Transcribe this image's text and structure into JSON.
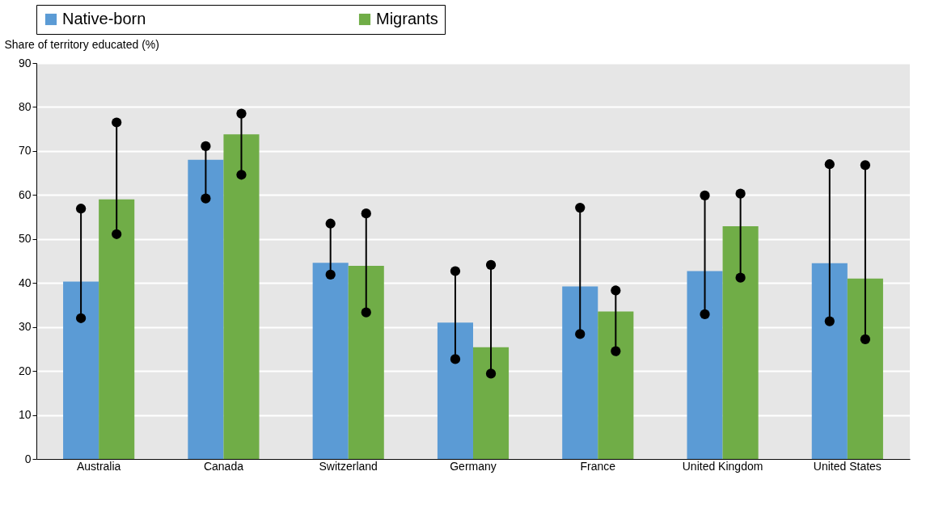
{
  "chart_data": {
    "type": "bar",
    "ylabel": "Share of territory educated (%)",
    "categories": [
      "Australia",
      "Canada",
      "Switzerland",
      "Germany",
      "France",
      "United Kingdom",
      "United States"
    ],
    "series": [
      {
        "name": "Native-born",
        "color": "#5b9bd5",
        "values": [
          40.3,
          68.0,
          44.6,
          31.0,
          39.2,
          42.7,
          44.5
        ]
      },
      {
        "name": "Migrants",
        "color": "#70ad47",
        "values": [
          59.0,
          73.8,
          43.9,
          25.4,
          33.5,
          52.9,
          41.0
        ]
      },
      {
        "type": "scatter",
        "color": "#000000",
        "values": [
          32.0,
          59.2,
          41.9,
          22.7,
          28.4,
          32.9,
          31.3
        ]
      },
      {
        "type": "scatter",
        "color": "#000000",
        "values": [
          56.9,
          71.1,
          53.5,
          42.7,
          57.1,
          59.9,
          67.0
        ]
      },
      {
        "type": "scatter",
        "color": "#000000",
        "values": [
          51.1,
          64.6,
          33.3,
          19.4,
          24.5,
          41.2,
          27.2
        ]
      },
      {
        "type": "scatter",
        "color": "#000000",
        "values": [
          76.5,
          78.5,
          55.8,
          44.1,
          38.3,
          60.3,
          66.8
        ]
      }
    ],
    "ylim": [
      0,
      90
    ],
    "yticks": [
      0,
      10,
      20,
      30,
      40,
      50,
      60,
      70,
      80,
      90
    ],
    "grid": "y",
    "legend": "top"
  }
}
